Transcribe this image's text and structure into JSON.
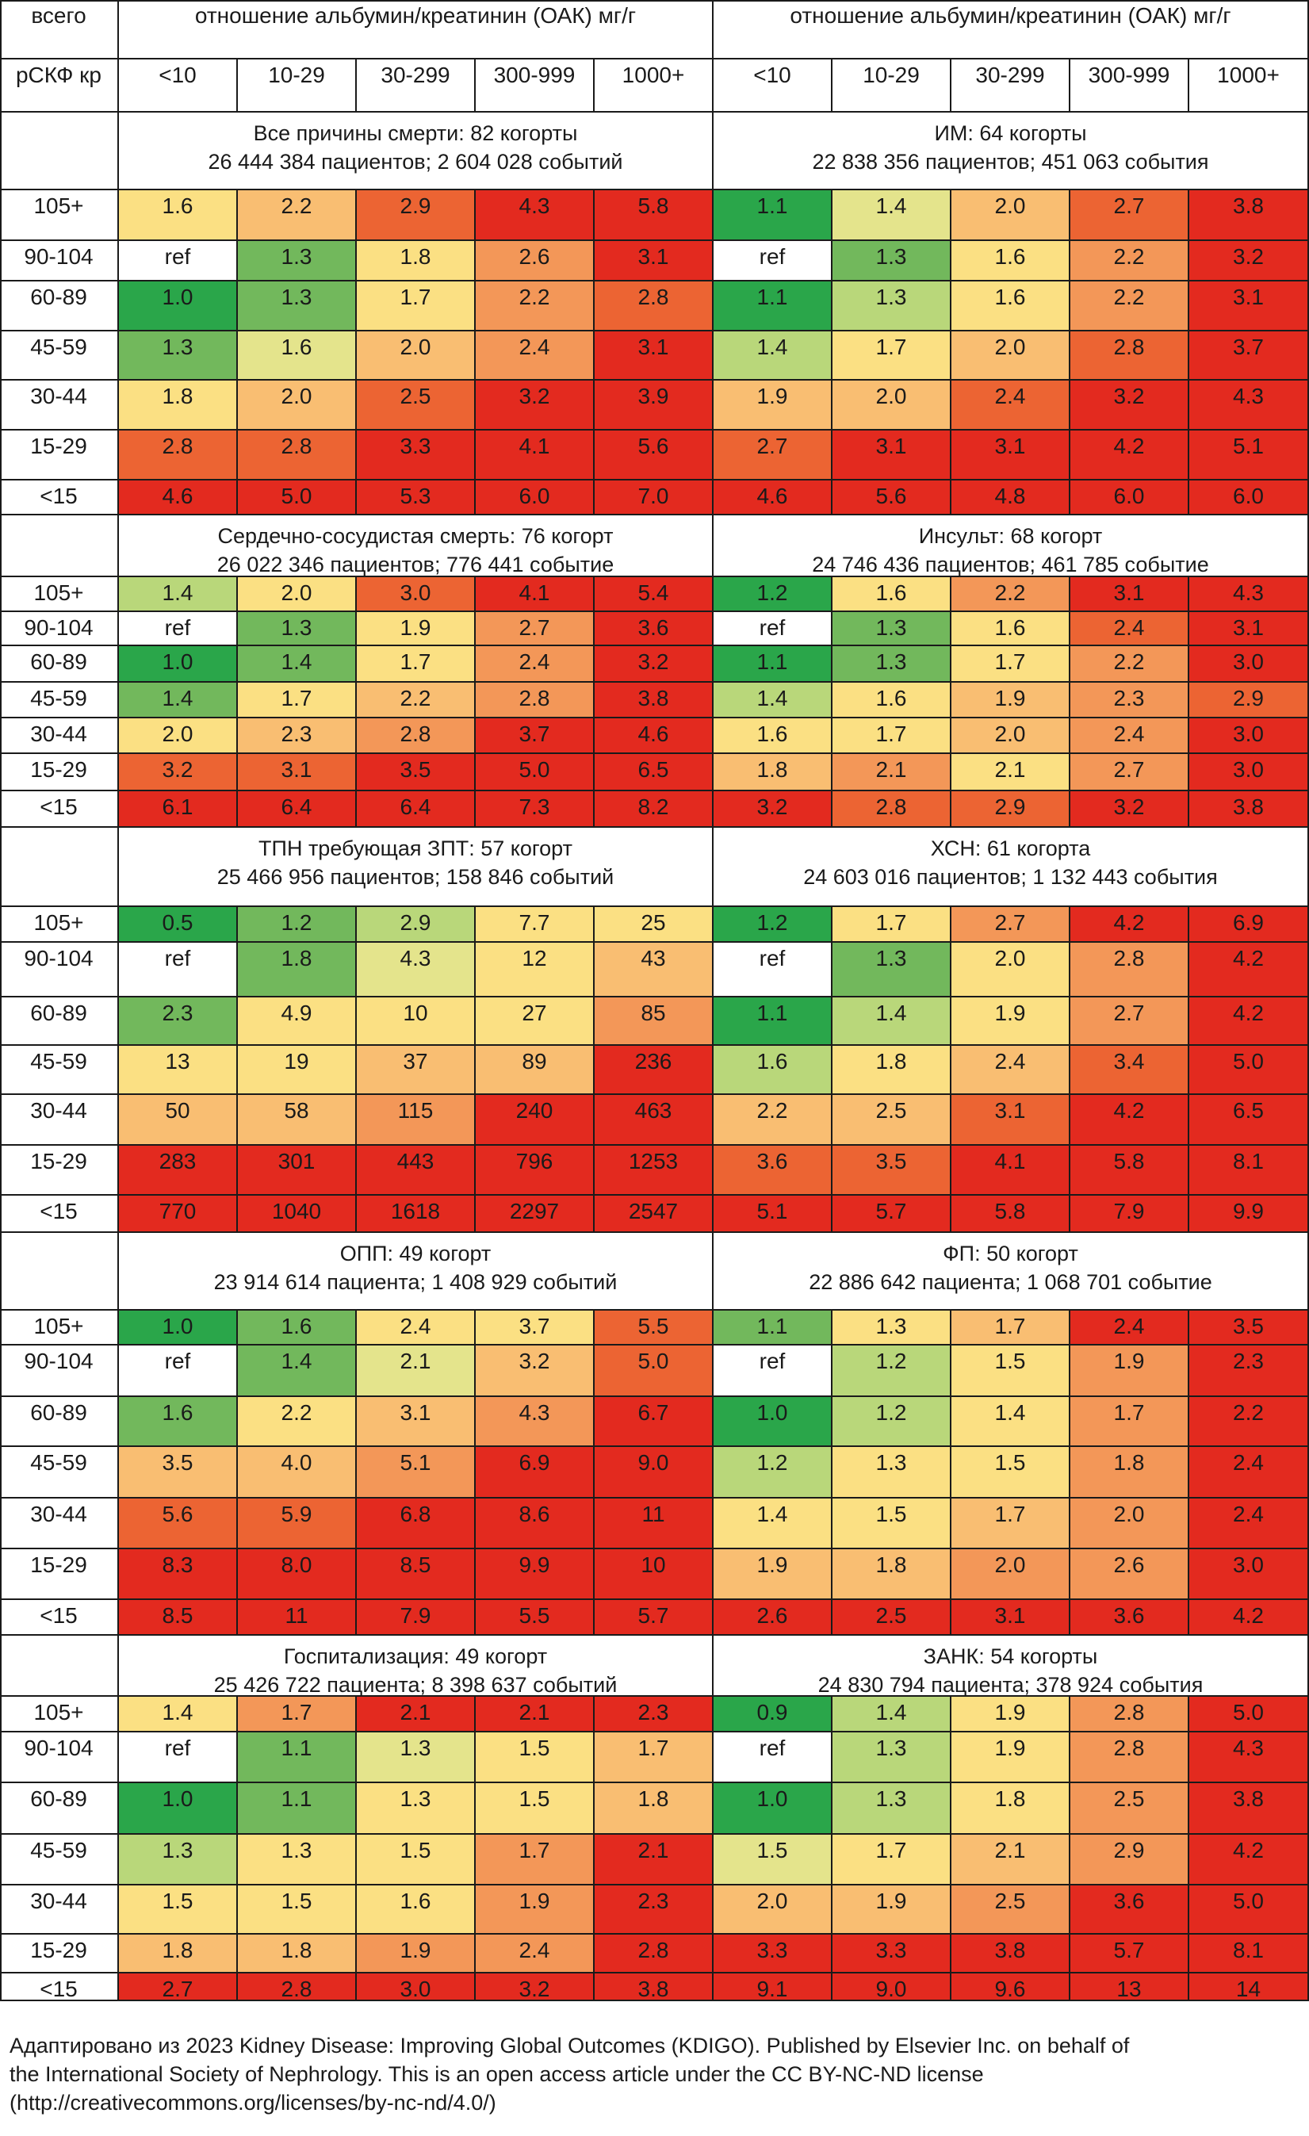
{
  "header": {
    "total_label": "всего",
    "egfr_label": "рСКФ кр",
    "acr_title": "отношение альбумин/креатинин (ОАК) мг/г",
    "acr_categories": [
      "<10",
      "10-29",
      "30-299",
      "300-999",
      "1000+"
    ]
  },
  "gfr_labels": [
    "105+",
    "90-104",
    "60-89",
    "45-59",
    "30-44",
    "15-29",
    "<15"
  ],
  "colors": {
    "dark_green": "#2aa64a",
    "green": "#72b85c",
    "light_green": "#b9d77a",
    "pale_yellow": "#e4e48c",
    "yellow": "#fbe083",
    "light_orange": "#f9be72",
    "orange": "#f39758",
    "dark_orange": "#ec6433",
    "red": "#e32a1f",
    "ref_white": "#ffffff"
  },
  "panels": [
    {
      "title": "Все причины смерти: 82 когорты",
      "subtitle": "26 444 384 пациентов; 2 604 028 событий",
      "values": [
        [
          "1.6",
          "2.2",
          "2.9",
          "4.3",
          "5.8"
        ],
        [
          "ref",
          "1.3",
          "1.8",
          "2.6",
          "3.1"
        ],
        [
          "1.0",
          "1.3",
          "1.7",
          "2.2",
          "2.8"
        ],
        [
          "1.3",
          "1.6",
          "2.0",
          "2.4",
          "3.1"
        ],
        [
          "1.8",
          "2.0",
          "2.5",
          "3.2",
          "3.9"
        ],
        [
          "2.8",
          "2.8",
          "3.3",
          "4.1",
          "5.6"
        ],
        [
          "4.6",
          "5.0",
          "5.3",
          "6.0",
          "7.0"
        ]
      ],
      "colors": [
        [
          "yellow",
          "light_orange",
          "dark_orange",
          "red",
          "red"
        ],
        [
          "ref_white",
          "green",
          "yellow",
          "orange",
          "red"
        ],
        [
          "dark_green",
          "green",
          "yellow",
          "orange",
          "dark_orange"
        ],
        [
          "green",
          "pale_yellow",
          "light_orange",
          "orange",
          "red"
        ],
        [
          "yellow",
          "light_orange",
          "dark_orange",
          "red",
          "red"
        ],
        [
          "dark_orange",
          "dark_orange",
          "red",
          "red",
          "red"
        ],
        [
          "red",
          "red",
          "red",
          "red",
          "red"
        ]
      ]
    },
    {
      "title": "ИМ: 64 когорты",
      "subtitle": "22 838 356 пациентов; 451 063 события",
      "values": [
        [
          "1.1",
          "1.4",
          "2.0",
          "2.7",
          "3.8"
        ],
        [
          "ref",
          "1.3",
          "1.6",
          "2.2",
          "3.2"
        ],
        [
          "1.1",
          "1.3",
          "1.6",
          "2.2",
          "3.1"
        ],
        [
          "1.4",
          "1.7",
          "2.0",
          "2.8",
          "3.7"
        ],
        [
          "1.9",
          "2.0",
          "2.4",
          "3.2",
          "4.3"
        ],
        [
          "2.7",
          "3.1",
          "3.1",
          "4.2",
          "5.1"
        ],
        [
          "4.6",
          "5.6",
          "4.8",
          "6.0",
          "6.0"
        ]
      ],
      "colors": [
        [
          "dark_green",
          "pale_yellow",
          "light_orange",
          "dark_orange",
          "red"
        ],
        [
          "ref_white",
          "green",
          "yellow",
          "orange",
          "red"
        ],
        [
          "dark_green",
          "light_green",
          "yellow",
          "orange",
          "red"
        ],
        [
          "light_green",
          "yellow",
          "light_orange",
          "dark_orange",
          "red"
        ],
        [
          "light_orange",
          "light_orange",
          "dark_orange",
          "red",
          "red"
        ],
        [
          "dark_orange",
          "red",
          "red",
          "red",
          "red"
        ],
        [
          "red",
          "red",
          "red",
          "red",
          "red"
        ]
      ]
    },
    {
      "title": "Сердечно-сосудистая смерть: 76 когорт",
      "subtitle": "26 022 346 пациентов; 776 441 событие",
      "values": [
        [
          "1.4",
          "2.0",
          "3.0",
          "4.1",
          "5.4"
        ],
        [
          "ref",
          "1.3",
          "1.9",
          "2.7",
          "3.6"
        ],
        [
          "1.0",
          "1.4",
          "1.7",
          "2.4",
          "3.2"
        ],
        [
          "1.4",
          "1.7",
          "2.2",
          "2.8",
          "3.8"
        ],
        [
          "2.0",
          "2.3",
          "2.8",
          "3.7",
          "4.6"
        ],
        [
          "3.2",
          "3.1",
          "3.5",
          "5.0",
          "6.5"
        ],
        [
          "6.1",
          "6.4",
          "6.4",
          "7.3",
          "8.2"
        ]
      ],
      "colors": [
        [
          "light_green",
          "yellow",
          "dark_orange",
          "red",
          "red"
        ],
        [
          "ref_white",
          "green",
          "yellow",
          "orange",
          "red"
        ],
        [
          "dark_green",
          "green",
          "yellow",
          "orange",
          "red"
        ],
        [
          "green",
          "yellow",
          "light_orange",
          "orange",
          "red"
        ],
        [
          "yellow",
          "light_orange",
          "orange",
          "red",
          "red"
        ],
        [
          "dark_orange",
          "dark_orange",
          "red",
          "red",
          "red"
        ],
        [
          "red",
          "red",
          "red",
          "red",
          "red"
        ]
      ]
    },
    {
      "title": "Инсульт: 68 когорт",
      "subtitle": "24 746 436 пациентов; 461 785 событие",
      "values": [
        [
          "1.2",
          "1.6",
          "2.2",
          "3.1",
          "4.3"
        ],
        [
          "ref",
          "1.3",
          "1.6",
          "2.4",
          "3.1"
        ],
        [
          "1.1",
          "1.3",
          "1.7",
          "2.2",
          "3.0"
        ],
        [
          "1.4",
          "1.6",
          "1.9",
          "2.3",
          "2.9"
        ],
        [
          "1.6",
          "1.7",
          "2.0",
          "2.4",
          "3.0"
        ],
        [
          "1.8",
          "2.1",
          "2.1",
          "2.7",
          "3.0"
        ],
        [
          "3.2",
          "2.8",
          "2.9",
          "3.2",
          "3.8"
        ]
      ],
      "colors": [
        [
          "dark_green",
          "yellow",
          "orange",
          "red",
          "red"
        ],
        [
          "ref_white",
          "green",
          "yellow",
          "dark_orange",
          "red"
        ],
        [
          "dark_green",
          "green",
          "yellow",
          "orange",
          "red"
        ],
        [
          "light_green",
          "yellow",
          "light_orange",
          "orange",
          "dark_orange"
        ],
        [
          "yellow",
          "yellow",
          "light_orange",
          "orange",
          "red"
        ],
        [
          "light_orange",
          "orange",
          "yellow",
          "orange",
          "red"
        ],
        [
          "red",
          "dark_orange",
          "dark_orange",
          "red",
          "red"
        ]
      ]
    },
    {
      "title": "ТПН требующая ЗПТ: 57 когорт",
      "subtitle": "25 466 956 пациентов; 158 846 событий",
      "values": [
        [
          "0.5",
          "1.2",
          "2.9",
          "7.7",
          "25"
        ],
        [
          "ref",
          "1.8",
          "4.3",
          "12",
          "43"
        ],
        [
          "2.3",
          "4.9",
          "10",
          "27",
          "85"
        ],
        [
          "13",
          "19",
          "37",
          "89",
          "236"
        ],
        [
          "50",
          "58",
          "115",
          "240",
          "463"
        ],
        [
          "283",
          "301",
          "443",
          "796",
          "1253"
        ],
        [
          "770",
          "1040",
          "1618",
          "2297",
          "2547"
        ]
      ],
      "colors": [
        [
          "dark_green",
          "green",
          "light_green",
          "yellow",
          "yellow"
        ],
        [
          "ref_white",
          "green",
          "pale_yellow",
          "yellow",
          "light_orange"
        ],
        [
          "green",
          "yellow",
          "yellow",
          "yellow",
          "orange"
        ],
        [
          "yellow",
          "yellow",
          "light_orange",
          "light_orange",
          "red"
        ],
        [
          "light_orange",
          "light_orange",
          "orange",
          "red",
          "red"
        ],
        [
          "red",
          "red",
          "red",
          "red",
          "red"
        ],
        [
          "red",
          "red",
          "red",
          "red",
          "red"
        ]
      ]
    },
    {
      "title": "ХСН: 61 когорта",
      "subtitle": "24 603 016 пациентов; 1 132 443 события",
      "values": [
        [
          "1.2",
          "1.7",
          "2.7",
          "4.2",
          "6.9"
        ],
        [
          "ref",
          "1.3",
          "2.0",
          "2.8",
          "4.2"
        ],
        [
          "1.1",
          "1.4",
          "1.9",
          "2.7",
          "4.2"
        ],
        [
          "1.6",
          "1.8",
          "2.4",
          "3.4",
          "5.0"
        ],
        [
          "2.2",
          "2.5",
          "3.1",
          "4.2",
          "6.5"
        ],
        [
          "3.6",
          "3.5",
          "4.1",
          "5.8",
          "8.1"
        ],
        [
          "5.1",
          "5.7",
          "5.8",
          "7.9",
          "9.9"
        ]
      ],
      "colors": [
        [
          "dark_green",
          "yellow",
          "orange",
          "red",
          "red"
        ],
        [
          "ref_white",
          "green",
          "yellow",
          "orange",
          "red"
        ],
        [
          "dark_green",
          "light_green",
          "yellow",
          "orange",
          "red"
        ],
        [
          "light_green",
          "yellow",
          "light_orange",
          "dark_orange",
          "red"
        ],
        [
          "light_orange",
          "light_orange",
          "dark_orange",
          "red",
          "red"
        ],
        [
          "dark_orange",
          "dark_orange",
          "red",
          "red",
          "red"
        ],
        [
          "red",
          "red",
          "red",
          "red",
          "red"
        ]
      ]
    },
    {
      "title": "ОПП: 49 когорт",
      "subtitle": "23 914 614 пациента; 1 408 929 событий",
      "values": [
        [
          "1.0",
          "1.6",
          "2.4",
          "3.7",
          "5.5"
        ],
        [
          "ref",
          "1.4",
          "2.1",
          "3.2",
          "5.0"
        ],
        [
          "1.6",
          "2.2",
          "3.1",
          "4.3",
          "6.7"
        ],
        [
          "3.5",
          "4.0",
          "5.1",
          "6.9",
          "9.0"
        ],
        [
          "5.6",
          "5.9",
          "6.8",
          "8.6",
          "11"
        ],
        [
          "8.3",
          "8.0",
          "8.5",
          "9.9",
          "10"
        ],
        [
          "8.5",
          "11",
          "7.9",
          "5.5",
          "5.7"
        ]
      ],
      "colors": [
        [
          "dark_green",
          "green",
          "yellow",
          "yellow",
          "dark_orange"
        ],
        [
          "ref_white",
          "green",
          "pale_yellow",
          "light_orange",
          "dark_orange"
        ],
        [
          "green",
          "yellow",
          "light_orange",
          "orange",
          "red"
        ],
        [
          "light_orange",
          "light_orange",
          "orange",
          "red",
          "red"
        ],
        [
          "dark_orange",
          "dark_orange",
          "red",
          "red",
          "red"
        ],
        [
          "red",
          "red",
          "red",
          "red",
          "red"
        ],
        [
          "red",
          "red",
          "red",
          "red",
          "red"
        ]
      ]
    },
    {
      "title": "ФП: 50 когорт",
      "subtitle": "22 886 642 пациента; 1 068 701 событие",
      "values": [
        [
          "1.1",
          "1.3",
          "1.7",
          "2.4",
          "3.5"
        ],
        [
          "ref",
          "1.2",
          "1.5",
          "1.9",
          "2.3"
        ],
        [
          "1.0",
          "1.2",
          "1.4",
          "1.7",
          "2.2"
        ],
        [
          "1.2",
          "1.3",
          "1.5",
          "1.8",
          "2.4"
        ],
        [
          "1.4",
          "1.5",
          "1.7",
          "2.0",
          "2.4"
        ],
        [
          "1.9",
          "1.8",
          "2.0",
          "2.6",
          "3.0"
        ],
        [
          "2.6",
          "2.5",
          "3.1",
          "3.6",
          "4.2"
        ]
      ],
      "colors": [
        [
          "green",
          "yellow",
          "light_orange",
          "red",
          "red"
        ],
        [
          "ref_white",
          "light_green",
          "yellow",
          "orange",
          "red"
        ],
        [
          "dark_green",
          "light_green",
          "yellow",
          "orange",
          "red"
        ],
        [
          "light_green",
          "yellow",
          "yellow",
          "orange",
          "red"
        ],
        [
          "yellow",
          "yellow",
          "light_orange",
          "orange",
          "red"
        ],
        [
          "light_orange",
          "light_orange",
          "orange",
          "orange",
          "red"
        ],
        [
          "red",
          "red",
          "red",
          "red",
          "red"
        ]
      ]
    },
    {
      "title": "Госпитализация: 49 когорт",
      "subtitle": "25 426 722 пациента; 8 398 637 событий",
      "values": [
        [
          "1.4",
          "1.7",
          "2.1",
          "2.1",
          "2.3"
        ],
        [
          "ref",
          "1.1",
          "1.3",
          "1.5",
          "1.7"
        ],
        [
          "1.0",
          "1.1",
          "1.3",
          "1.5",
          "1.8"
        ],
        [
          "1.3",
          "1.3",
          "1.5",
          "1.7",
          "2.1"
        ],
        [
          "1.5",
          "1.5",
          "1.6",
          "1.9",
          "2.3"
        ],
        [
          "1.8",
          "1.8",
          "1.9",
          "2.4",
          "2.8"
        ],
        [
          "2.7",
          "2.8",
          "3.0",
          "3.2",
          "3.8"
        ]
      ],
      "colors": [
        [
          "yellow",
          "orange",
          "red",
          "red",
          "red"
        ],
        [
          "ref_white",
          "green",
          "pale_yellow",
          "yellow",
          "light_orange"
        ],
        [
          "dark_green",
          "green",
          "yellow",
          "yellow",
          "light_orange"
        ],
        [
          "light_green",
          "yellow",
          "yellow",
          "orange",
          "red"
        ],
        [
          "yellow",
          "yellow",
          "yellow",
          "orange",
          "red"
        ],
        [
          "light_orange",
          "light_orange",
          "orange",
          "orange",
          "red"
        ],
        [
          "red",
          "red",
          "red",
          "red",
          "red"
        ]
      ]
    },
    {
      "title": "ЗАНК: 54 когорты",
      "subtitle": "24 830 794 пациента; 378 924 события",
      "values": [
        [
          "0.9",
          "1.4",
          "1.9",
          "2.8",
          "5.0"
        ],
        [
          "ref",
          "1.3",
          "1.9",
          "2.8",
          "4.3"
        ],
        [
          "1.0",
          "1.3",
          "1.8",
          "2.5",
          "3.8"
        ],
        [
          "1.5",
          "1.7",
          "2.1",
          "2.9",
          "4.2"
        ],
        [
          "2.0",
          "1.9",
          "2.5",
          "3.6",
          "5.0"
        ],
        [
          "3.3",
          "3.3",
          "3.8",
          "5.7",
          "8.1"
        ],
        [
          "9.1",
          "9.0",
          "9.6",
          "13",
          "14"
        ]
      ],
      "colors": [
        [
          "dark_green",
          "light_green",
          "yellow",
          "orange",
          "red"
        ],
        [
          "ref_white",
          "light_green",
          "yellow",
          "orange",
          "red"
        ],
        [
          "dark_green",
          "light_green",
          "yellow",
          "orange",
          "red"
        ],
        [
          "pale_yellow",
          "yellow",
          "light_orange",
          "orange",
          "red"
        ],
        [
          "light_orange",
          "light_orange",
          "orange",
          "red",
          "red"
        ],
        [
          "red",
          "red",
          "red",
          "red",
          "red"
        ],
        [
          "red",
          "red",
          "red",
          "red",
          "red"
        ]
      ]
    }
  ],
  "footer": {
    "line1": "Адаптировано из 2023 Kidney Disease: Improving Global Outcomes (KDIGO). Published by Elsevier Inc. on behalf of",
    "line2": "the International Society of Nephrology. This is an open access article under the CC BY-NC-ND license",
    "line3": "(http://creativecommons.org/licenses/by-nc-nd/4.0/)"
  }
}
